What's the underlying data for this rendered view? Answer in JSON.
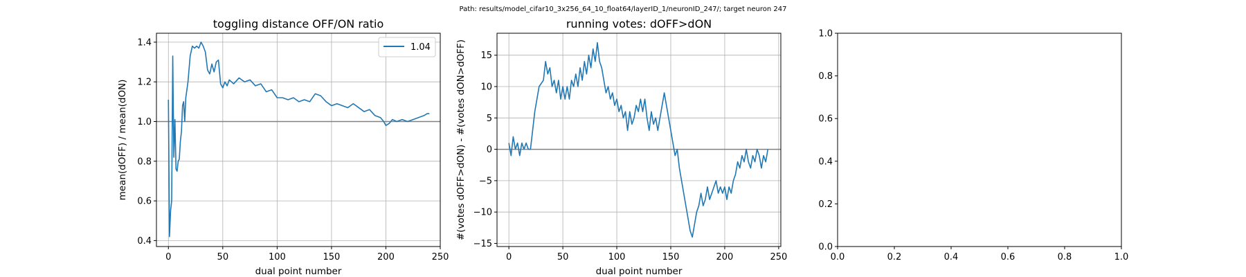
{
  "suptitle": "Path: results/model_cifar10_3x256_64_10_float64/layerID_1/neuronID_247/; target neuron 247",
  "colors": {
    "line": "#1f77b4",
    "grid": "#b0b0b0",
    "refline": "#808080",
    "axes": "#000000"
  },
  "chart_data": [
    {
      "type": "line",
      "title": "toggling distance OFF/ON ratio",
      "xlabel": "dual point number",
      "ylabel": "mean(dOFF) / mean(dON)",
      "xlim": [
        -11,
        250
      ],
      "ylim": [
        0.37,
        1.445
      ],
      "xticks": [
        0,
        50,
        100,
        150,
        200,
        250
      ],
      "yticks": [
        0.4,
        0.6,
        0.8,
        1.0,
        1.2,
        1.4
      ],
      "xtick_labels": [
        "0",
        "50",
        "100",
        "150",
        "200",
        "250"
      ],
      "ytick_labels": [
        "0.4",
        "0.6",
        "0.8",
        "1.0",
        "1.2",
        "1.4"
      ],
      "grid": true,
      "hline": 1.0,
      "legend_position": "top-right",
      "series": [
        {
          "name": "1.04",
          "x": [
            0,
            1,
            2,
            3,
            4,
            5,
            6,
            7,
            8,
            9,
            10,
            11,
            12,
            13,
            14,
            15,
            16,
            18,
            20,
            22,
            24,
            26,
            28,
            30,
            32,
            34,
            36,
            38,
            40,
            42,
            44,
            46,
            48,
            50,
            52,
            54,
            56,
            60,
            65,
            70,
            75,
            80,
            85,
            90,
            95,
            100,
            105,
            110,
            115,
            120,
            125,
            130,
            135,
            140,
            145,
            150,
            155,
            160,
            165,
            170,
            175,
            180,
            185,
            190,
            195,
            198,
            200,
            203,
            206,
            210,
            215,
            220,
            225,
            230,
            235,
            238,
            240
          ],
          "y": [
            1.11,
            0.42,
            0.55,
            0.6,
            1.33,
            0.82,
            1.01,
            0.76,
            0.75,
            0.8,
            0.81,
            0.9,
            0.95,
            1.08,
            1.1,
            1.0,
            1.12,
            1.2,
            1.33,
            1.38,
            1.37,
            1.38,
            1.37,
            1.4,
            1.38,
            1.35,
            1.26,
            1.24,
            1.29,
            1.25,
            1.3,
            1.31,
            1.19,
            1.17,
            1.2,
            1.18,
            1.21,
            1.19,
            1.22,
            1.2,
            1.21,
            1.18,
            1.19,
            1.15,
            1.16,
            1.12,
            1.12,
            1.11,
            1.12,
            1.1,
            1.11,
            1.1,
            1.14,
            1.13,
            1.1,
            1.08,
            1.09,
            1.08,
            1.07,
            1.09,
            1.07,
            1.05,
            1.06,
            1.03,
            1.02,
            1.0,
            0.98,
            0.99,
            1.01,
            1.0,
            1.01,
            1.0,
            1.01,
            1.02,
            1.03,
            1.04,
            1.04
          ]
        }
      ]
    },
    {
      "type": "line",
      "title": "running votes: dOFF>dON",
      "xlabel": "dual point number",
      "ylabel": "#(votes dOFF>dON) - #(votes dON>dOFF)",
      "xlim": [
        -11,
        252
      ],
      "ylim": [
        -15.5,
        18.5
      ],
      "xticks": [
        0,
        50,
        100,
        150,
        200,
        250
      ],
      "yticks": [
        -15,
        -10,
        -5,
        0,
        5,
        10,
        15
      ],
      "xtick_labels": [
        "0",
        "50",
        "100",
        "150",
        "200",
        "250"
      ],
      "ytick_labels": [
        "−15",
        "−10",
        "−5",
        "0",
        "5",
        "10",
        "15"
      ],
      "grid": true,
      "hline": 0,
      "series": [
        {
          "x": [
            0,
            2,
            4,
            6,
            8,
            10,
            12,
            14,
            16,
            18,
            20,
            24,
            28,
            32,
            34,
            36,
            38,
            40,
            42,
            44,
            46,
            48,
            50,
            52,
            54,
            56,
            58,
            60,
            62,
            64,
            66,
            68,
            70,
            72,
            74,
            76,
            78,
            80,
            82,
            84,
            86,
            88,
            90,
            92,
            94,
            96,
            98,
            100,
            102,
            104,
            106,
            108,
            110,
            112,
            114,
            116,
            118,
            120,
            122,
            124,
            126,
            128,
            130,
            132,
            134,
            136,
            138,
            140,
            142,
            144,
            146,
            148,
            150,
            152,
            154,
            156,
            158,
            160,
            162,
            164,
            166,
            168,
            170,
            172,
            174,
            176,
            178,
            180,
            182,
            184,
            186,
            188,
            190,
            192,
            194,
            196,
            198,
            200,
            202,
            204,
            206,
            208,
            210,
            212,
            214,
            216,
            218,
            220,
            222,
            224,
            226,
            228,
            230,
            232,
            234,
            236,
            238,
            240
          ],
          "y": [
            1,
            -1,
            2,
            0,
            1,
            -1,
            1,
            0,
            1,
            0,
            0,
            6,
            10,
            11,
            14,
            12,
            13,
            10,
            11,
            9,
            11,
            8,
            10,
            8,
            10,
            8,
            11,
            10,
            12,
            10,
            13,
            11,
            14,
            12,
            15,
            13,
            16,
            14,
            17,
            14,
            13,
            11,
            9,
            10,
            8,
            9,
            7,
            8,
            6,
            7,
            5,
            6,
            3,
            6,
            4,
            5,
            7,
            6,
            8,
            6,
            8,
            5,
            3,
            6,
            4,
            5,
            3,
            5,
            7,
            9,
            7,
            5,
            3,
            1,
            -1,
            0,
            -3,
            -5,
            -7,
            -9,
            -11,
            -13,
            -14,
            -12,
            -10,
            -9,
            -7,
            -9,
            -8,
            -6,
            -8,
            -7,
            -6,
            -5,
            -7,
            -6,
            -7,
            -6,
            -8,
            -6,
            -7,
            -5,
            -4,
            -2,
            -3,
            -1,
            -2,
            0,
            -2,
            -3,
            -1,
            -2,
            0,
            -1,
            -3,
            -1,
            -2,
            0
          ]
        }
      ]
    },
    {
      "type": "line",
      "title": "",
      "xlabel": "",
      "ylabel": "",
      "xlim": [
        0,
        1
      ],
      "ylim": [
        0,
        1
      ],
      "xticks": [
        0,
        0.2,
        0.4,
        0.6,
        0.8,
        1.0
      ],
      "yticks": [
        0,
        0.2,
        0.4,
        0.6,
        0.8,
        1.0
      ],
      "xtick_labels": [
        "0.0",
        "0.2",
        "0.4",
        "0.6",
        "0.8",
        "1.0"
      ],
      "ytick_labels": [
        "0.0",
        "0.2",
        "0.4",
        "0.6",
        "0.8",
        "1.0"
      ],
      "grid": false,
      "series": []
    }
  ]
}
